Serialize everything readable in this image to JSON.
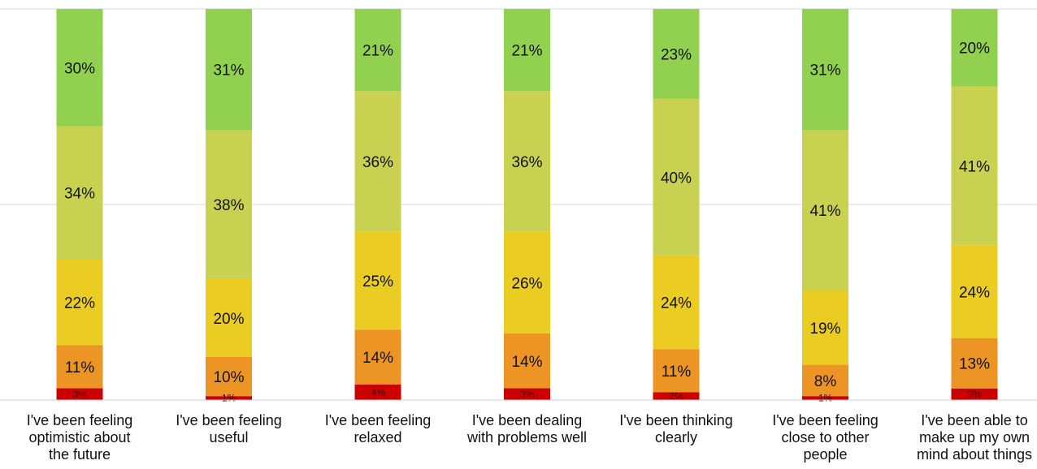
{
  "chart_data": {
    "type": "bar",
    "stacked": true,
    "normalized": true,
    "ylim": [
      0,
      100
    ],
    "grid": true,
    "legend": "none",
    "categories": [
      "I've been feeling\noptimistic about\nthe future",
      "I've been feeling\nuseful",
      "I've been feeling\nrelaxed",
      "I've been dealing\nwith problems well",
      "I've been thinking\nclearly",
      "I've been feeling\nclose to other\npeople",
      "I've been able to\nmake up my own\nmind about things"
    ],
    "series": [
      {
        "color": "#cc0000",
        "values": [
          3,
          1,
          4,
          3,
          2,
          1,
          3
        ],
        "labels": [
          "3%",
          "1%",
          "4%",
          "3%",
          "2%",
          "1%",
          "3%"
        ]
      },
      {
        "color": "#ec9424",
        "values": [
          11,
          10,
          14,
          14,
          11,
          8,
          13
        ],
        "labels": [
          "11%",
          "10%",
          "14%",
          "14%",
          "11%",
          "8%",
          "13%"
        ]
      },
      {
        "color": "#eacc22",
        "values": [
          22,
          20,
          25,
          26,
          24,
          19,
          24
        ],
        "labels": [
          "22%",
          "20%",
          "25%",
          "26%",
          "24%",
          "19%",
          "24%"
        ]
      },
      {
        "color": "#c9d150",
        "values": [
          34,
          38,
          36,
          36,
          40,
          41,
          41
        ],
        "labels": [
          "34%",
          "38%",
          "36%",
          "36%",
          "40%",
          "41%",
          "41%"
        ]
      },
      {
        "color": "#92d14f",
        "values": [
          30,
          31,
          21,
          21,
          23,
          31,
          20
        ],
        "labels": [
          "30%",
          "31%",
          "21%",
          "21%",
          "23%",
          "31%",
          "20%"
        ]
      }
    ]
  }
}
